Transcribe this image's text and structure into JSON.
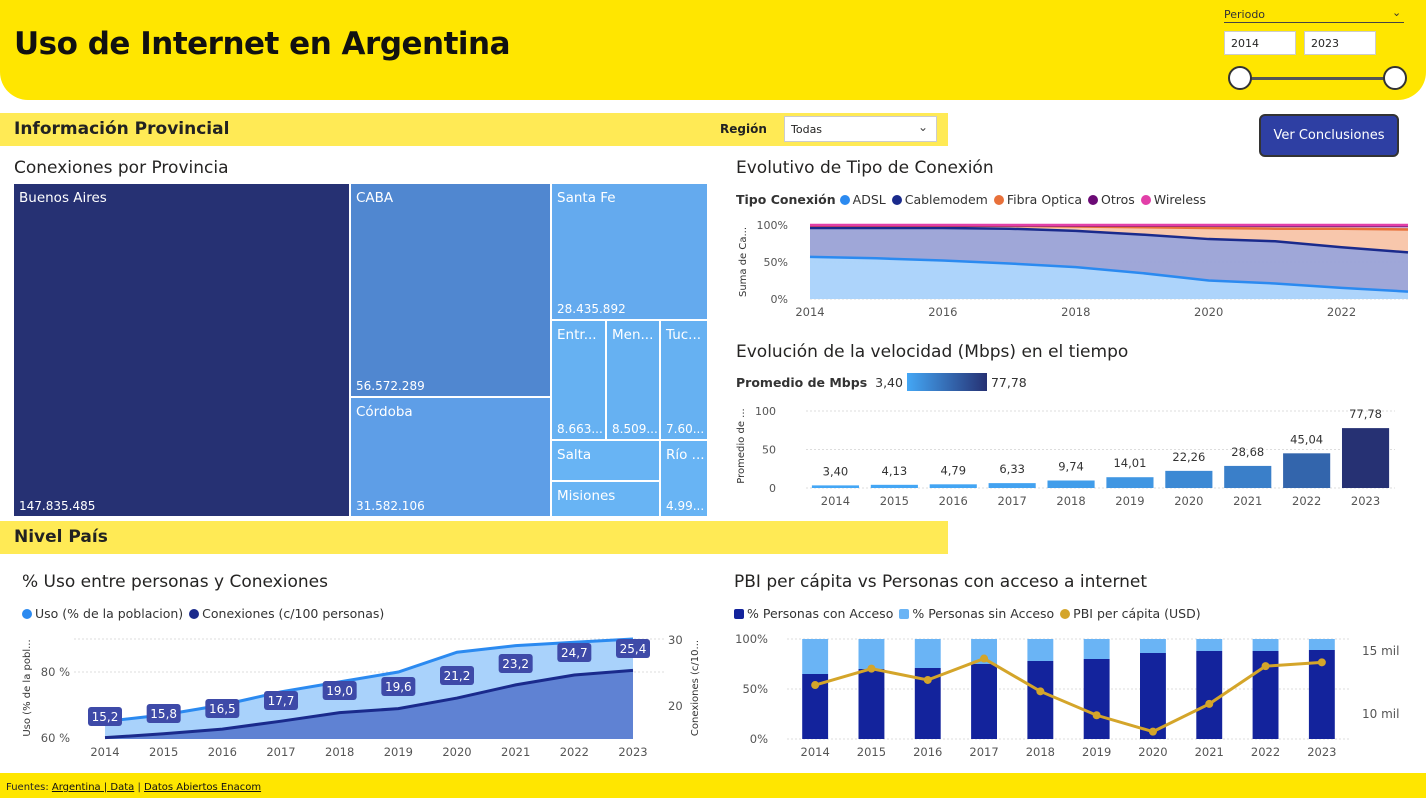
{
  "header": {
    "title": "Uso de Internet en Argentina",
    "periodo_label": "Periodo",
    "date_from": "2014",
    "date_to": "2023"
  },
  "provincial": {
    "section_title": "Información Provincial",
    "region_label": "Región",
    "region_value": "Todas",
    "conclusions_button": "Ver Conclusiones"
  },
  "pais": {
    "section_title": "Nivel País"
  },
  "colors": {
    "yellow": "#FFE600",
    "yellow_light": "#FFEA55",
    "navy": "#263173",
    "button": "#2E3FA3"
  },
  "chart_data": [
    {
      "id": "treemap",
      "type": "treemap",
      "title": "Conexiones por Provincia",
      "cells": [
        {
          "name": "Buenos Aires",
          "value": "147.835.485"
        },
        {
          "name": "CABA",
          "value": "56.572.289"
        },
        {
          "name": "Córdoba",
          "value": "31.582.106"
        },
        {
          "name": "Santa Fe",
          "value": "28.435.892"
        },
        {
          "name": "Entr...",
          "value": "8.663..."
        },
        {
          "name": "Men...",
          "value": "8.509..."
        },
        {
          "name": "Tuc...",
          "value": "7.60..."
        },
        {
          "name": "Salta",
          "value": ""
        },
        {
          "name": "Río ...",
          "value": "4.99..."
        },
        {
          "name": "Misiones",
          "value": ""
        }
      ]
    },
    {
      "id": "tipo_conexion",
      "type": "area",
      "title": "Evolutivo de Tipo de Conexión",
      "legend_title": "Tipo Conexión",
      "ylabel": "Suma de Ca...",
      "x": [
        2014,
        2015,
        2016,
        2017,
        2018,
        2019,
        2020,
        2021,
        2022,
        2023
      ],
      "x_ticks": [
        "2014",
        "2016",
        "2018",
        "2020",
        "2022"
      ],
      "y_ticks": [
        "0%",
        "50%",
        "100%"
      ],
      "series": [
        {
          "name": "ADSL",
          "color": "#2B8AF0",
          "values": [
            57,
            55,
            52,
            48,
            43,
            35,
            25,
            21,
            15,
            10
          ]
        },
        {
          "name": "Cablemodem",
          "color": "#1A2A8C",
          "values": [
            96,
            96,
            96,
            95,
            92,
            87,
            81,
            78,
            70,
            63
          ]
        },
        {
          "name": "Fibra Optica",
          "color": "#E8703A",
          "values": [
            99,
            99,
            99,
            99,
            98,
            97,
            96,
            95,
            95,
            94
          ]
        },
        {
          "name": "Otros",
          "color": "#6B0A75",
          "values": [
            99.5,
            99.5,
            99.5,
            99.5,
            99.4,
            99.4,
            99.3,
            99.2,
            99.2,
            99.1
          ]
        },
        {
          "name": "Wireless",
          "color": "#E23FA8",
          "values": [
            100,
            100,
            100,
            100,
            100,
            100,
            100,
            100,
            100,
            100
          ]
        }
      ]
    },
    {
      "id": "velocidad",
      "type": "bar",
      "title": "Evolución de la velocidad (Mbps) en el tiempo",
      "legend_title": "Promedio de Mbps",
      "legend_min": "3,40",
      "legend_max": "77,78",
      "ylabel": "Promedio de ...",
      "y_ticks": [
        "0",
        "50",
        "100"
      ],
      "ylim": [
        0,
        100
      ],
      "categories": [
        "2014",
        "2015",
        "2016",
        "2017",
        "2018",
        "2019",
        "2020",
        "2021",
        "2022",
        "2023"
      ],
      "values": [
        3.4,
        4.13,
        4.79,
        6.33,
        9.74,
        14.01,
        22.26,
        28.68,
        45.04,
        77.78
      ],
      "labels": [
        "3,40",
        "4,13",
        "4,79",
        "6,33",
        "9,74",
        "14,01",
        "22,26",
        "28,68",
        "45,04",
        "77,78"
      ]
    },
    {
      "id": "uso_conexiones",
      "type": "area",
      "title": "% Uso entre personas y Conexiones",
      "legend": [
        "Uso (% de la poblacion)",
        "Conexiones (c/100 personas)"
      ],
      "ylabel_left": "Uso (% de la pobl...",
      "ylabel_right": "Conexiones (c/10...",
      "y_ticks_left": [
        "60 %",
        "80 %"
      ],
      "y_ticks_right": [
        "20",
        "30"
      ],
      "categories": [
        "2014",
        "2015",
        "2016",
        "2017",
        "2018",
        "2019",
        "2020",
        "2021",
        "2022",
        "2023"
      ],
      "uso": [
        65,
        67,
        70,
        74,
        77,
        80,
        86,
        88,
        89,
        90
      ],
      "conexiones": [
        15.2,
        15.8,
        16.5,
        17.7,
        19.0,
        19.6,
        21.2,
        23.2,
        24.7,
        25.4
      ],
      "conexiones_labels": [
        "15,2",
        "15,8",
        "16,5",
        "17,7",
        "19,0",
        "19,6",
        "21,2",
        "23,2",
        "24,7",
        "25,4"
      ]
    },
    {
      "id": "pbi",
      "type": "bar",
      "title": "PBI per cápita vs Personas con acceso a internet",
      "legend": [
        "% Personas con Acceso",
        "% Personas sin Acceso",
        "PBI per cápita (USD)"
      ],
      "y_ticks_left": [
        "0%",
        "50%",
        "100%"
      ],
      "y_ticks_right": [
        "10 mil",
        "15 mil"
      ],
      "categories": [
        "2014",
        "2015",
        "2016",
        "2017",
        "2018",
        "2019",
        "2020",
        "2021",
        "2022",
        "2023"
      ],
      "con_acceso": [
        65,
        70,
        71,
        75,
        78,
        80,
        86,
        88,
        88,
        89
      ],
      "pbi_usd": [
        12300,
        13600,
        12700,
        14400,
        11800,
        9900,
        8600,
        10800,
        13800,
        14100
      ]
    }
  ],
  "footer": {
    "prefix": "Fuentes:",
    "link1": "Argentina | Data",
    "sep": "|",
    "link2": "Datos Abiertos Enacom"
  }
}
